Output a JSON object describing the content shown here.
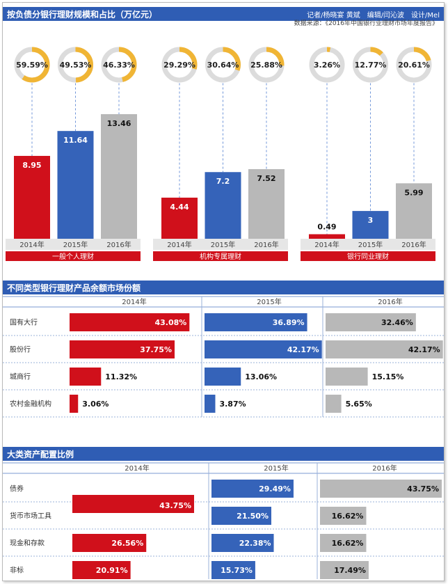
{
  "section1": {
    "title": "按负债分银行理财规模和占比（万亿元）",
    "credits": "记者/杨晓宴 黄斌　编辑/闫沁波　设计/Mel",
    "source": "数据来源：《2016年中国银行业理财市场年度报告》"
  },
  "section2": {
    "title": "不同类型银行理财产品余额市场份额"
  },
  "section3": {
    "title": "大类资产配置比例"
  },
  "colors": {
    "2014": "#d0101b",
    "2015": "#3563b9",
    "2016": "#b8b8b8",
    "accent": "#f0b535",
    "ring": "#dcdcdc",
    "header": "#2f5db4"
  },
  "chart_data": [
    {
      "type": "bar",
      "title": "按负债分银行理财规模和占比（万亿元）",
      "years": [
        "2014年",
        "2015年",
        "2016年"
      ],
      "groups": [
        {
          "name": "一般个人理财",
          "values": [
            8.95,
            11.64,
            13.46
          ],
          "value_labels": [
            "8.95",
            "11.64",
            "13.46"
          ],
          "shares": [
            59.59,
            49.53,
            46.33
          ],
          "share_labels": [
            "59.59%",
            "49.53%",
            "46.33%"
          ]
        },
        {
          "name": "机构专属理财",
          "values": [
            4.44,
            7.2,
            7.52
          ],
          "value_labels": [
            "4.44",
            "7.2",
            "7.52"
          ],
          "shares": [
            29.29,
            30.64,
            25.88
          ],
          "share_labels": [
            "29.29%",
            "30.64%",
            "25.88%"
          ]
        },
        {
          "name": "银行同业理财",
          "values": [
            0.49,
            3,
            5.99
          ],
          "value_labels": [
            "0.49",
            "3",
            "5.99"
          ],
          "shares": [
            3.26,
            12.77,
            20.61
          ],
          "share_labels": [
            "3.26%",
            "12.77%",
            "20.61%"
          ]
        }
      ],
      "ylim": [
        0,
        14
      ]
    },
    {
      "type": "bar",
      "title": "不同类型银行理财产品余额市场份额",
      "columns": [
        "2014年",
        "2015年",
        "2016年"
      ],
      "rows": [
        "国有大行",
        "股份行",
        "城商行",
        "农村金融机构"
      ],
      "values": [
        [
          43.08,
          36.89,
          32.46
        ],
        [
          37.75,
          42.17,
          42.17
        ],
        [
          11.32,
          13.06,
          15.15
        ],
        [
          3.06,
          3.87,
          5.65
        ]
      ],
      "labels": [
        [
          "43.08%",
          "36.89%",
          "32.46%"
        ],
        [
          "37.75%",
          "42.17%",
          "42.17%"
        ],
        [
          "11.32%",
          "13.06%",
          "15.15%"
        ],
        [
          "3.06%",
          "3.87%",
          "5.65%"
        ]
      ],
      "xlim": [
        0,
        50
      ]
    },
    {
      "type": "bar",
      "title": "大类资产配置比例",
      "columns": [
        "2014年",
        "2015年",
        "2016年"
      ],
      "rows": [
        "债券",
        "货币市场工具",
        "现金和存款",
        "非标"
      ],
      "values": [
        [
          null,
          29.49,
          43.75
        ],
        [
          43.75,
          21.5,
          16.62
        ],
        [
          26.56,
          22.38,
          16.62
        ],
        [
          20.91,
          15.73,
          17.49
        ]
      ],
      "labels": [
        [
          "",
          "29.49%",
          "43.75%"
        ],
        [
          "43.75%",
          "21.50%",
          "16.62%"
        ],
        [
          "26.56%",
          "22.38%",
          "16.62%"
        ],
        [
          "20.91%",
          "15.73%",
          "17.49%"
        ]
      ],
      "xlim": [
        0,
        50
      ]
    }
  ]
}
